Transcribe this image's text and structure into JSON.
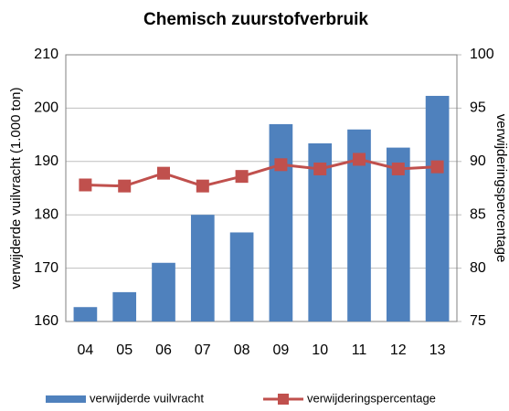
{
  "chart_data": {
    "type": "bar-line",
    "title": "Chemisch zuurstofverbruik",
    "y_label": "verwijderde vuilvracht (1.000 ton)",
    "y2_label": "verwijderingspercentage",
    "categories": [
      "04",
      "05",
      "06",
      "07",
      "08",
      "09",
      "10",
      "11",
      "12",
      "13"
    ],
    "series": [
      {
        "name": "verwijderde vuilvracht",
        "type": "bar",
        "color": "#4f81bd",
        "values": [
          162.7,
          165.5,
          171,
          180,
          176.7,
          197,
          193.4,
          196,
          192.6,
          202.3
        ]
      },
      {
        "name": "verwijderingspercentage",
        "type": "line",
        "axis": "y2",
        "color": "#c0504d",
        "values": [
          87.8,
          87.7,
          88.9,
          87.7,
          88.6,
          89.7,
          89.3,
          90.2,
          89.3,
          89.5
        ]
      }
    ],
    "ylim": [
      160,
      210
    ],
    "yticks": [
      160,
      170,
      180,
      190,
      200,
      210
    ],
    "y2lim": [
      75,
      100
    ],
    "y2ticks": [
      75,
      80,
      85,
      90,
      95,
      100
    ],
    "grid": true,
    "legend": "bottom"
  }
}
